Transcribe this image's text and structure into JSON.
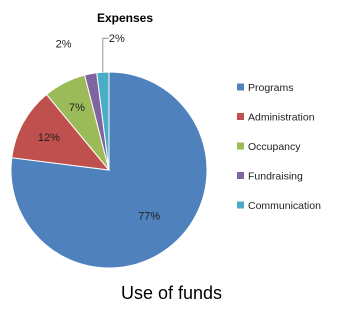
{
  "caption": "Use of funds",
  "chart_data": {
    "type": "pie",
    "title": "Expenses",
    "slices": [
      {
        "label": "Programs",
        "value": 77,
        "display": "77%",
        "color": "#4f81bd"
      },
      {
        "label": "Administration",
        "value": 12,
        "display": "12%",
        "color": "#c0504d"
      },
      {
        "label": "Occupancy",
        "value": 7,
        "display": "7%",
        "color": "#9bbb59"
      },
      {
        "label": "Fundraising",
        "value": 2,
        "display": "2%",
        "color": "#8064a2"
      },
      {
        "label": "Communication",
        "value": 2,
        "display": "2%",
        "color": "#4bacc6"
      }
    ],
    "legend_position": "right"
  }
}
